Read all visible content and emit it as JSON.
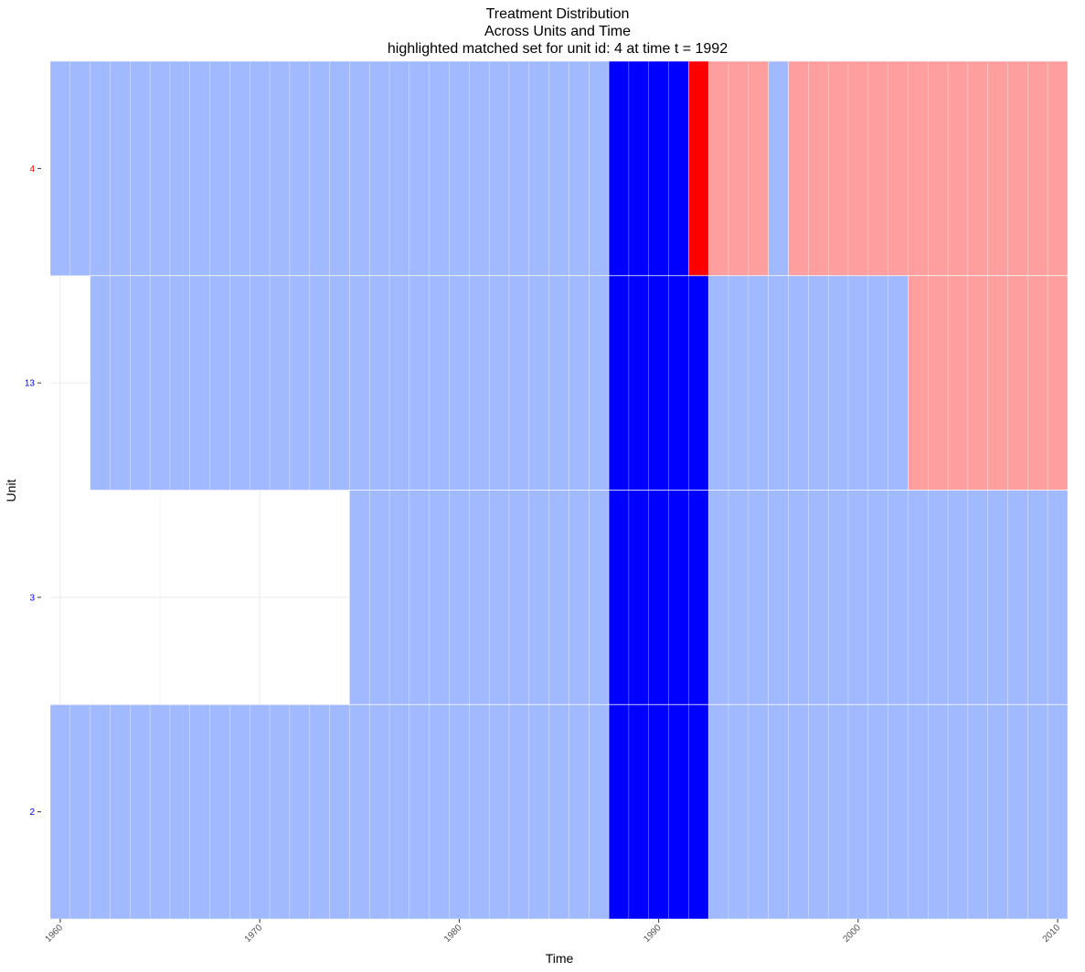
{
  "chart_data": {
    "type": "heatmap",
    "title_lines": [
      "Treatment Distribution",
      "Across Units and Time",
      "highlighted matched set for unit id: 4 at time t = 1992"
    ],
    "xlabel": "Time",
    "ylabel": "Unit",
    "xlim": [
      1959.5,
      2010.5
    ],
    "x_ticks": [
      1960,
      1970,
      1980,
      1990,
      2000,
      2010
    ],
    "grid": true,
    "legend": "none",
    "units": [
      {
        "id": "4",
        "label_color": "#ff0000"
      },
      {
        "id": "13",
        "label_color": "#0000ff"
      },
      {
        "id": "3",
        "label_color": "#0000ff"
      },
      {
        "id": "2",
        "label_color": "#0000ff"
      }
    ],
    "colors": {
      "control": "#a0b9ff",
      "treated": "#ff9e9e",
      "matched_set": "#0000ff",
      "treated_unit_highlight": "#ff0000",
      "missing": "#ffffff"
    },
    "rows": [
      {
        "unit": "4",
        "cells": [
          {
            "from": 1960,
            "to": 1987,
            "status": "control"
          },
          {
            "from": 1988,
            "to": 1991,
            "status": "matched_set"
          },
          {
            "from": 1992,
            "to": 1992,
            "status": "treated_unit_highlight"
          },
          {
            "from": 1993,
            "to": 1995,
            "status": "treated"
          },
          {
            "from": 1996,
            "to": 1996,
            "status": "control"
          },
          {
            "from": 1997,
            "to": 2010,
            "status": "treated"
          }
        ]
      },
      {
        "unit": "13",
        "cells": [
          {
            "from": 1962,
            "to": 1987,
            "status": "control"
          },
          {
            "from": 1988,
            "to": 1992,
            "status": "matched_set"
          },
          {
            "from": 1993,
            "to": 2002,
            "status": "control"
          },
          {
            "from": 2003,
            "to": 2010,
            "status": "treated"
          }
        ]
      },
      {
        "unit": "3",
        "cells": [
          {
            "from": 1975,
            "to": 1987,
            "status": "control"
          },
          {
            "from": 1988,
            "to": 1992,
            "status": "matched_set"
          },
          {
            "from": 1993,
            "to": 2010,
            "status": "control"
          }
        ]
      },
      {
        "unit": "2",
        "cells": [
          {
            "from": 1960,
            "to": 1987,
            "status": "control"
          },
          {
            "from": 1988,
            "to": 1992,
            "status": "matched_set"
          },
          {
            "from": 1993,
            "to": 2010,
            "status": "control"
          }
        ]
      }
    ]
  }
}
